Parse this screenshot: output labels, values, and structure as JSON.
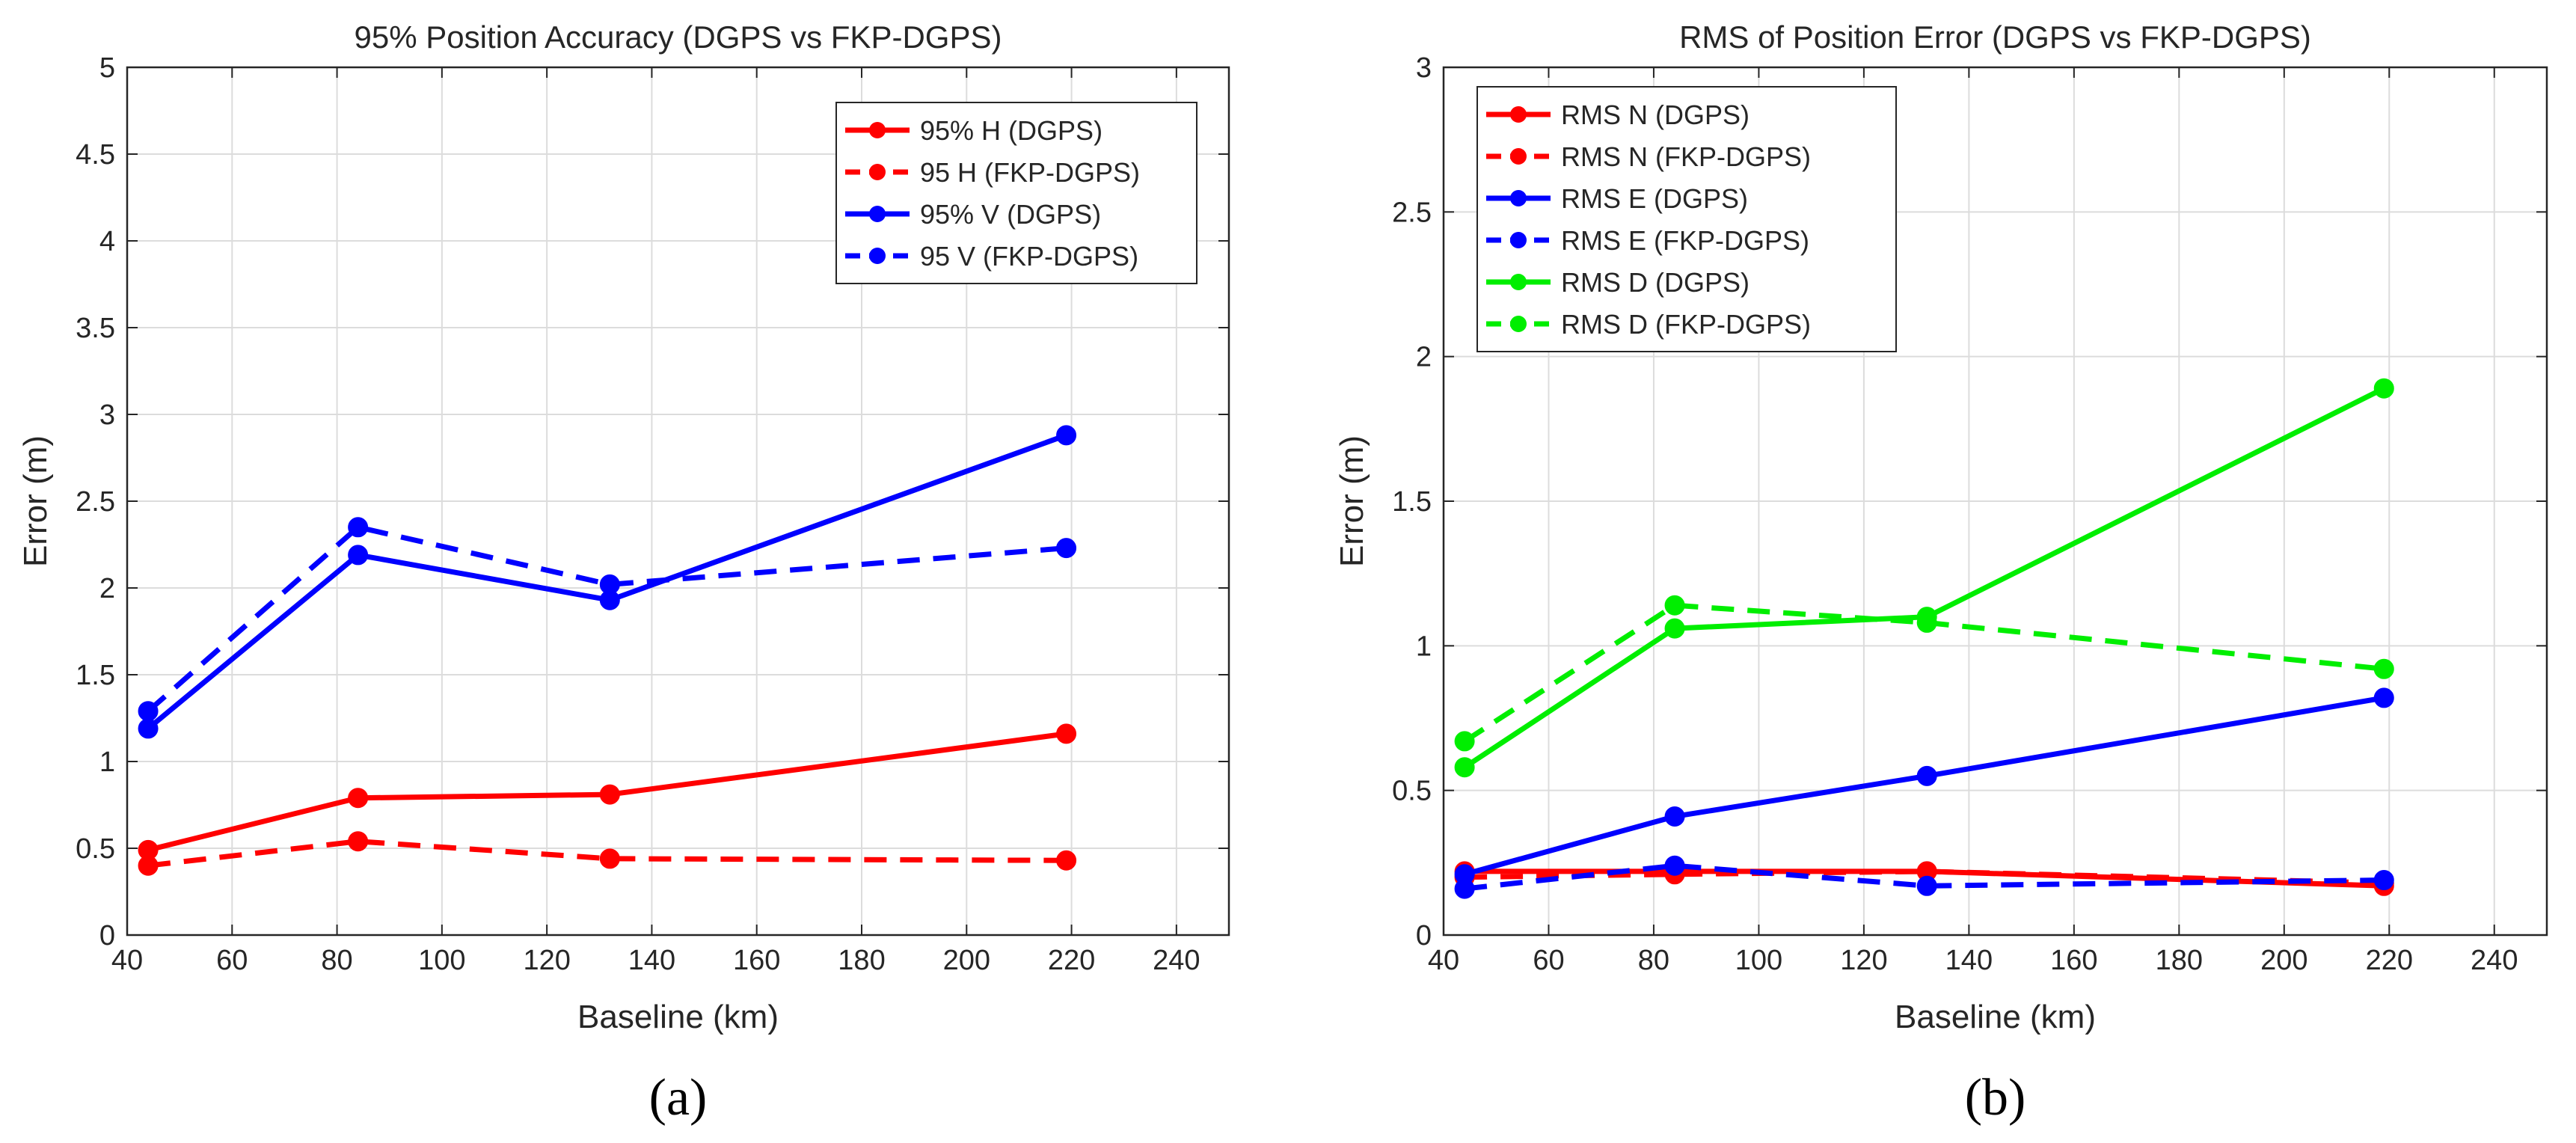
{
  "chart_data": [
    {
      "type": "line",
      "title": "95% Position Accuracy (DGPS vs FKP-DGPS)",
      "xlabel": "Baseline (km)",
      "ylabel": "Error (m)",
      "xlim": [
        40,
        250
      ],
      "ylim": [
        0,
        5
      ],
      "xticks": [
        40,
        60,
        80,
        100,
        120,
        140,
        160,
        180,
        200,
        220,
        240
      ],
      "yticks": [
        0,
        0.5,
        1,
        1.5,
        2,
        2.5,
        3,
        3.5,
        4,
        4.5,
        5
      ],
      "ytick_labels": [
        "0",
        "0.5",
        "1",
        "1.5",
        "2",
        "2.5",
        "3",
        "3.5",
        "4",
        "4.5",
        "5"
      ],
      "grid": true,
      "legend_position": "top-right",
      "caption": "(a)",
      "x": [
        44,
        84,
        132,
        219
      ],
      "series": [
        {
          "name": "95% H (DGPS)",
          "color": "#ff0000",
          "dash": "solid",
          "values": [
            0.49,
            0.79,
            0.81,
            1.16
          ]
        },
        {
          "name": "95 H (FKP-DGPS)",
          "color": "#ff0000",
          "dash": "dashed",
          "values": [
            0.4,
            0.54,
            0.44,
            0.43
          ]
        },
        {
          "name": "95% V (DGPS)",
          "color": "#0000ff",
          "dash": "solid",
          "values": [
            1.19,
            2.19,
            1.93,
            2.88
          ]
        },
        {
          "name": "95 V (FKP-DGPS)",
          "color": "#0000ff",
          "dash": "dashed",
          "values": [
            1.29,
            2.35,
            2.02,
            2.23
          ]
        }
      ]
    },
    {
      "type": "line",
      "title": "RMS of Position Error (DGPS vs FKP-DGPS)",
      "xlabel": "Baseline (km)",
      "ylabel": "Error (m)",
      "xlim": [
        40,
        250
      ],
      "ylim": [
        0,
        3
      ],
      "xticks": [
        40,
        60,
        80,
        100,
        120,
        140,
        160,
        180,
        200,
        220,
        240
      ],
      "yticks": [
        0,
        0.5,
        1,
        1.5,
        2,
        2.5,
        3
      ],
      "ytick_labels": [
        "0",
        "0.5",
        "1",
        "1.5",
        "2",
        "2.5",
        "3"
      ],
      "grid": true,
      "legend_position": "top-left",
      "caption": "(b)",
      "x": [
        44,
        84,
        132,
        219
      ],
      "series": [
        {
          "name": "RMS N (DGPS)",
          "color": "#ff0000",
          "dash": "solid",
          "values": [
            0.22,
            0.22,
            0.22,
            0.17
          ]
        },
        {
          "name": "RMS N (FKP-DGPS)",
          "color": "#ff0000",
          "dash": "dashed",
          "values": [
            0.2,
            0.21,
            0.22,
            0.18
          ]
        },
        {
          "name": "RMS E (DGPS)",
          "color": "#0000ff",
          "dash": "solid",
          "values": [
            0.21,
            0.41,
            0.55,
            0.82
          ]
        },
        {
          "name": "RMS E (FKP-DGPS)",
          "color": "#0000ff",
          "dash": "dashed",
          "values": [
            0.16,
            0.24,
            0.17,
            0.19
          ]
        },
        {
          "name": "RMS D (DGPS)",
          "color": "#00ee00",
          "dash": "solid",
          "values": [
            0.58,
            1.06,
            1.1,
            1.89
          ]
        },
        {
          "name": "RMS D (FKP-DGPS)",
          "color": "#00ee00",
          "dash": "dashed",
          "values": [
            0.67,
            1.14,
            1.08,
            0.92
          ]
        }
      ]
    }
  ]
}
